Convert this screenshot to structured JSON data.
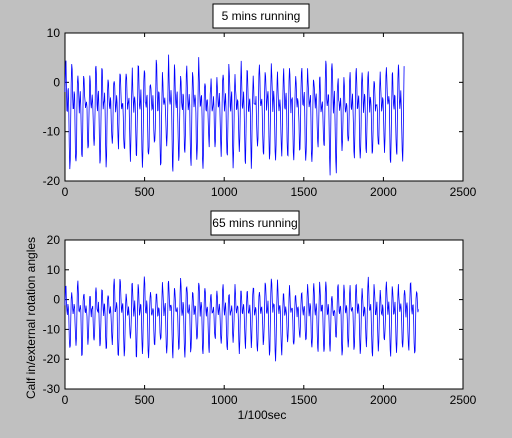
{
  "chart_data": [
    {
      "type": "line",
      "title": "5 mins running",
      "xlabel": "",
      "ylabel": "",
      "xlim": [
        0,
        2500
      ],
      "ylim": [
        -20,
        10
      ],
      "xticks": [
        0,
        500,
        1000,
        1500,
        2000,
        2500
      ],
      "yticks": [
        -20,
        -10,
        0,
        10
      ],
      "grid": false,
      "series": [
        {
          "color": "#0000ff",
          "x_start": 0,
          "x_end": 2130,
          "y_range_observed": [
            -19,
            8
          ],
          "period_approx": 38
        }
      ]
    },
    {
      "type": "line",
      "title": "65 mins running",
      "xlabel": "1/100sec",
      "ylabel": "Calf in/external rotation angles",
      "xlim": [
        0,
        2500
      ],
      "ylim": [
        -30,
        20
      ],
      "xticks": [
        0,
        500,
        1000,
        1500,
        2000,
        2500
      ],
      "yticks": [
        -30,
        -20,
        -10,
        0,
        10,
        20
      ],
      "grid": false,
      "series": [
        {
          "color": "#0000ff",
          "x_start": 0,
          "x_end": 2220,
          "y_range_observed": [
            -21,
            11
          ],
          "period_approx": 38
        }
      ]
    }
  ]
}
